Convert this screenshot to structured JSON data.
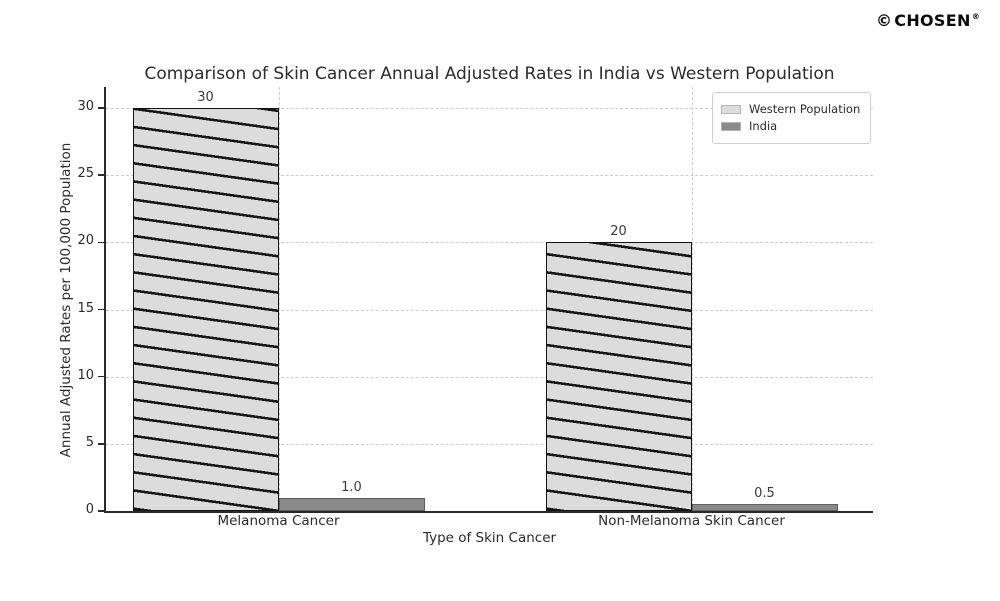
{
  "branding": {
    "copyright": "©",
    "name": "CHOSEN",
    "registered": "®"
  },
  "chart_data": {
    "type": "bar",
    "title": "Comparison of Skin Cancer Annual Adjusted Rates in India vs Western Population",
    "xlabel": "Type of Skin Cancer",
    "ylabel": "Annual Adjusted Rates per 100,000 Population",
    "categories": [
      "Melanoma Cancer",
      "Non-Melanoma Skin Cancer"
    ],
    "series": [
      {
        "name": "Western Population",
        "values": [
          30,
          20
        ],
        "value_labels": [
          "30",
          "20"
        ],
        "color": "#dcdcdc",
        "hatch": "\\",
        "edge_color": "#141414"
      },
      {
        "name": "India",
        "values": [
          1.0,
          0.5
        ],
        "value_labels": [
          "1.0",
          "0.5"
        ],
        "color": "#8a8a8a",
        "hatch": null,
        "edge_color": "#5f5f5f"
      }
    ],
    "yticks": [
      0,
      5,
      10,
      15,
      20,
      25,
      30
    ],
    "ylim": [
      0,
      31.6
    ],
    "grid": true,
    "legend_position": "upper right",
    "gridline_color": "#cdcdcd",
    "axis_color": "#2a2a2a"
  }
}
